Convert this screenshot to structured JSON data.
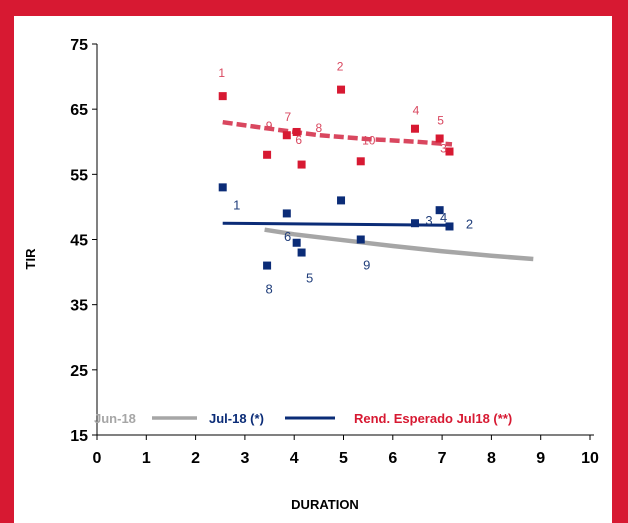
{
  "chart_data": {
    "type": "scatter",
    "xlabel": "DURATION",
    "ylabel": "TIR",
    "xlim": [
      0,
      10
    ],
    "ylim": [
      15,
      75
    ],
    "x_ticks": [
      "0",
      "1",
      "2",
      "3",
      "4",
      "5",
      "6",
      "7",
      "8",
      "9",
      "10"
    ],
    "y_ticks": [
      "15",
      "25",
      "35",
      "45",
      "55",
      "65",
      "75"
    ],
    "grid": false,
    "legend_position": "bottom",
    "legend": [
      "Jun-18",
      "Jul-18 (*)",
      "Rend. Esperado Jul18 (**)"
    ],
    "colors": {
      "jun": "#a6a6a6",
      "jul": "#0b2c77",
      "esperado": "#d71932",
      "esperado_labels": "#d9475f",
      "jul_labels": "#1f3d7a"
    },
    "series": [
      {
        "name": "Jul-18 (*)",
        "points": [
          {
            "x": 2.55,
            "y": 53,
            "label": "1"
          },
          {
            "x": 3.85,
            "y": 49,
            "label": ""
          },
          {
            "x": 3.45,
            "y": 41,
            "label": "8"
          },
          {
            "x": 4.05,
            "y": 44.5,
            "label": "6"
          },
          {
            "x": 4.15,
            "y": 43,
            "label": "5"
          },
          {
            "x": 4.95,
            "y": 51,
            "label": ""
          },
          {
            "x": 5.35,
            "y": 45,
            "label": "9"
          },
          {
            "x": 6.45,
            "y": 47.5,
            "label": "3"
          },
          {
            "x": 6.95,
            "y": 49.5,
            "label": "4"
          },
          {
            "x": 7.15,
            "y": 47,
            "label": "2"
          }
        ]
      },
      {
        "name": "Rend. Esperado Jul18 (**)",
        "points": [
          {
            "x": 2.55,
            "y": 67,
            "label": "1"
          },
          {
            "x": 3.85,
            "y": 61,
            "label": "7"
          },
          {
            "x": 3.45,
            "y": 58,
            "label": "9"
          },
          {
            "x": 4.05,
            "y": 61.5,
            "label": "6"
          },
          {
            "x": 4.15,
            "y": 56.5,
            "label": ""
          },
          {
            "x": 4.95,
            "y": 68,
            "label": "2"
          },
          {
            "x": 5.35,
            "y": 57,
            "label": "10"
          },
          {
            "x": 6.45,
            "y": 62,
            "label": "4"
          },
          {
            "x": 6.95,
            "y": 60.5,
            "label": "5"
          },
          {
            "x": 7.15,
            "y": 58.5,
            "label": "3"
          }
        ]
      }
    ],
    "extra_labels": [
      {
        "series": "Rend. Esperado Jul18 (**)",
        "x": 4.5,
        "y": 61.5,
        "label": "8"
      }
    ],
    "trend_lines": [
      {
        "name": "Jun-18",
        "style": "solid",
        "points": [
          [
            3.4,
            46.5
          ],
          [
            4.0,
            45.8
          ],
          [
            5.0,
            44.9
          ],
          [
            6.0,
            44.0
          ],
          [
            7.0,
            43.2
          ],
          [
            8.0,
            42.5
          ],
          [
            8.85,
            42.0
          ]
        ]
      },
      {
        "name": "Jul-18 (*)",
        "style": "solid",
        "points": [
          [
            2.55,
            47.5
          ],
          [
            7.15,
            47.2
          ]
        ]
      },
      {
        "name": "Rend. Esperado Jul18 (**)",
        "style": "dashed",
        "points": [
          [
            2.55,
            63
          ],
          [
            3.5,
            62.0
          ],
          [
            4.5,
            61.0
          ],
          [
            5.5,
            60.4
          ],
          [
            6.5,
            60.0
          ],
          [
            7.2,
            59.6
          ]
        ]
      }
    ]
  }
}
